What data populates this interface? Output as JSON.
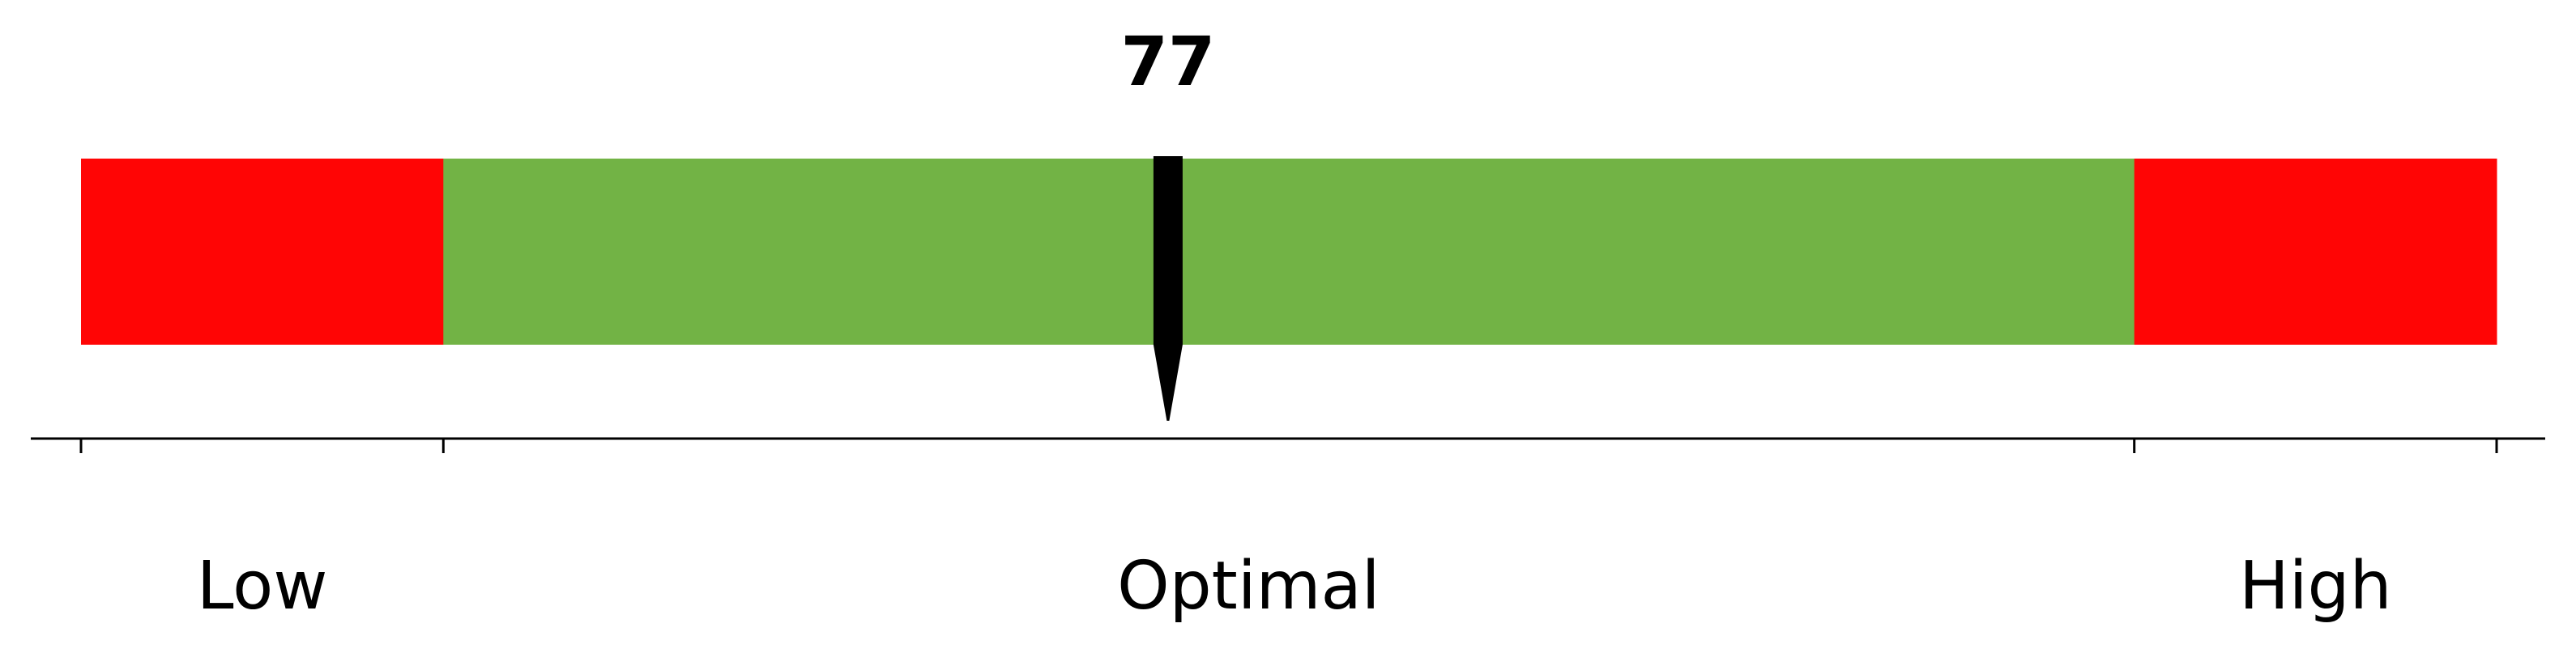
{
  "chart_data": {
    "type": "gauge",
    "title": "",
    "value": 77,
    "value_label": "77",
    "range": [
      50,
      110
    ],
    "zones": [
      {
        "name": "Low",
        "start": 50,
        "end": 59,
        "color": "#ff0505"
      },
      {
        "name": "Optimal",
        "start": 59,
        "end": 101,
        "color": "#72b345"
      },
      {
        "name": "High",
        "start": 101,
        "end": 110,
        "color": "#ff0505"
      }
    ],
    "axis": {
      "ticks": [
        50,
        59,
        101,
        110
      ],
      "tick_labels_visible": false
    },
    "zone_labels": [
      {
        "label": "Low",
        "at": 54.5
      },
      {
        "label": "Optimal",
        "at": 79
      },
      {
        "label": "High",
        "at": 105.5
      }
    ],
    "marker_color": "#000000",
    "axis_color": "#000000"
  }
}
